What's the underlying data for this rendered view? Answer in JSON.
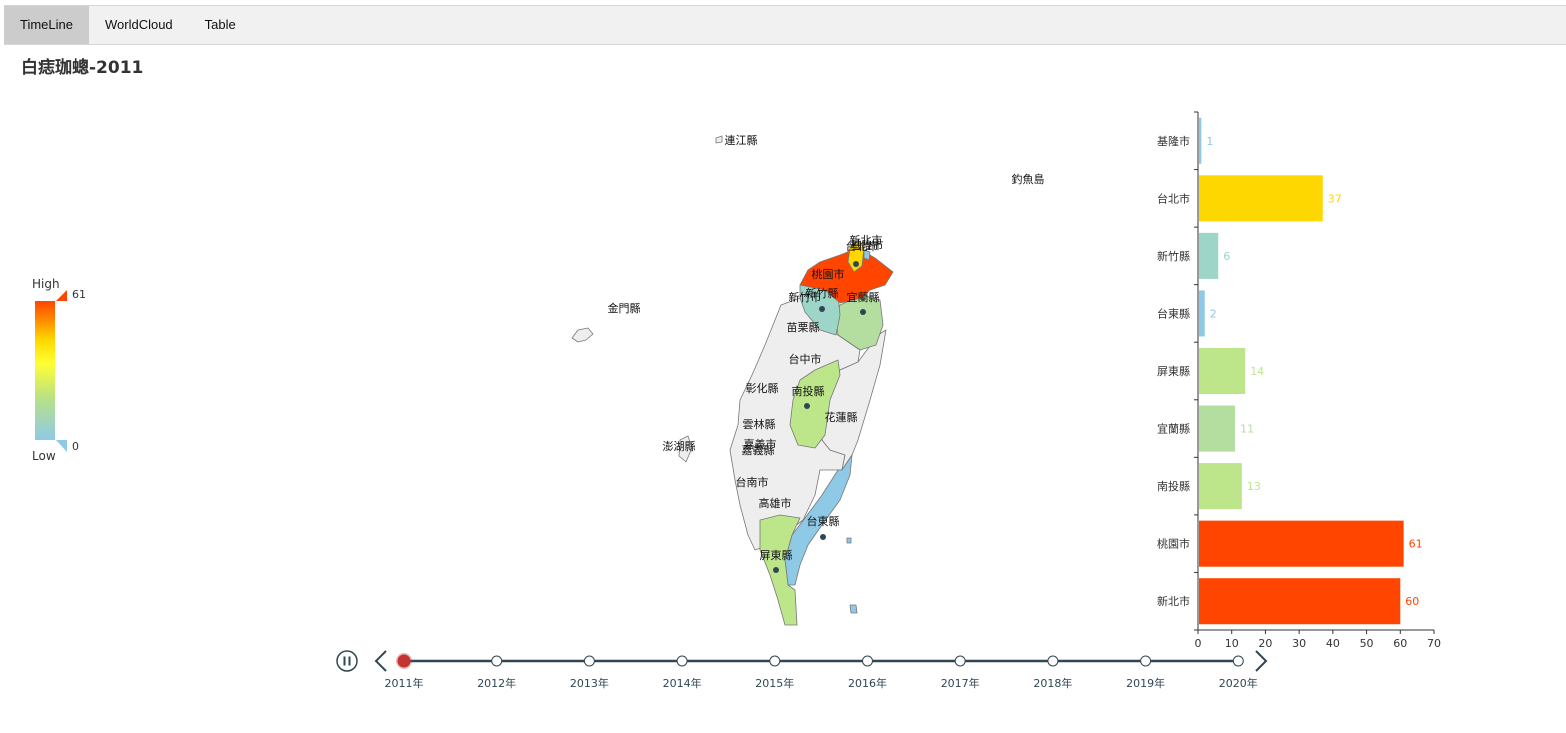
{
  "tabs": [
    {
      "label": "TimeLine",
      "active": true
    },
    {
      "label": "WorldCloud",
      "active": false
    },
    {
      "label": "Table",
      "active": false
    }
  ],
  "title": "白痣珈蟌-2011",
  "colors": {
    "scale": [
      "#8ecae6",
      "#b8e186",
      "#ffff33",
      "#ffd700",
      "#ff8c00",
      "#ff4500"
    ],
    "no_data": "#eeeeee",
    "timeline": "#304654",
    "timeline_current": "#c23531"
  },
  "visual_map": {
    "high_label": "High",
    "low_label": "Low",
    "max": 61,
    "min": 0,
    "max_text": "61",
    "min_text": "0"
  },
  "map": {
    "labels": [
      "連江縣",
      "釣魚島",
      "金門縣",
      "新北市",
      "台北市",
      "基隆市",
      "桃園市",
      "新竹市",
      "新竹縣",
      "宜蘭縣",
      "苗栗縣",
      "台中市",
      "彰化縣",
      "南投縣",
      "花蓮縣",
      "雲林縣",
      "嘉義市",
      "嘉義縣",
      "澎湖縣",
      "台南市",
      "高雄市",
      "台東縣",
      "屏東縣"
    ]
  },
  "chart_data": {
    "type": "bar",
    "orientation": "horizontal",
    "categories": [
      "基隆市",
      "台北市",
      "新竹縣",
      "台東縣",
      "屏東縣",
      "宜蘭縣",
      "南投縣",
      "桃園市",
      "新北市"
    ],
    "values": [
      1,
      37,
      6,
      2,
      14,
      11,
      13,
      61,
      60
    ],
    "bar_colors": [
      "#8ecae6",
      "#ffd700",
      "#9dd6c8",
      "#8ecae6",
      "#bde68a",
      "#b3dea0",
      "#bde68a",
      "#ff4500",
      "#ff4500"
    ],
    "label_colors": [
      "#8ecae6",
      "#ffd700",
      "#9dd6c8",
      "#8ecae6",
      "#bde68a",
      "#b3dea0",
      "#bde68a",
      "#ff4500",
      "#ff4500"
    ],
    "xlim": [
      0,
      70
    ],
    "xticks": [
      0,
      10,
      20,
      30,
      40,
      50,
      60,
      70
    ]
  },
  "timeline": {
    "years": [
      "2011年",
      "2012年",
      "2013年",
      "2014年",
      "2015年",
      "2016年",
      "2017年",
      "2018年",
      "2019年",
      "2020年"
    ],
    "current_index": 0
  }
}
